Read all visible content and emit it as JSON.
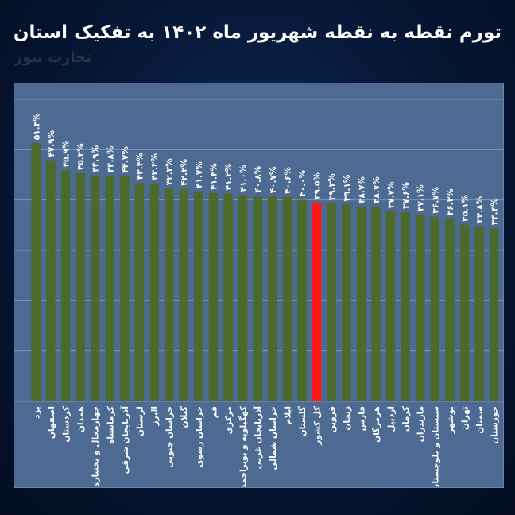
{
  "title": "تورم نقطه به نقطه شهریور ماه ۱۴۰۲ به تفکیک استان",
  "watermark": "تجارت نیوز",
  "colors": {
    "background": "#071634",
    "panel": "#4d6a92",
    "bar": "#4b6a2b",
    "highlight": "#ff1a1a",
    "grid": "#7c95b8",
    "label": "#ffffff"
  },
  "chart_data": {
    "type": "bar",
    "categories": [
      "یزد",
      "اصفهان",
      "کردستان",
      "همدان",
      "چهارمحال و بختیاری",
      "کرمانشاه",
      "آذربایجان شرقی",
      "لرستان",
      "البرز",
      "خراسان جنوبی",
      "گیلان",
      "خراسان رضوی",
      "قم",
      "مرکزی",
      "کهگیلویه و بویراحمد",
      "آذربایجان غربی",
      "خراسان شمالی",
      "ایلام",
      "گلستان",
      "کل کشور",
      "قزوین",
      "زنجان",
      "فارس",
      "هرمزگان",
      "اردبیل",
      "کرمان",
      "مازندران",
      "سیستان و بلوچستان",
      "بوشهر",
      "تهران",
      "سمنان",
      "خوزستان"
    ],
    "values": [
      51.3,
      47.9,
      45.9,
      45.3,
      44.9,
      44.8,
      44.7,
      43.4,
      43.3,
      42.3,
      42.2,
      41.7,
      41.4,
      41.3,
      41.0,
      40.8,
      40.7,
      40.6,
      40.0,
      39.5,
      39.3,
      39.1,
      38.7,
      38.7,
      37.7,
      37.6,
      37.1,
      36.7,
      36.3,
      35.1,
      34.8,
      34.4
    ],
    "data_labels": [
      "۵۱.۳%",
      "۴۷.۹%",
      "۴۵.۹%",
      "۴۵.۳%",
      "۴۴.۹%",
      "۴۴.۸%",
      "۴۴.۷%",
      "۴۳.۴%",
      "۴۳.۳%",
      "۴۲.۳%",
      "۴۲.۲%",
      "۴۱.۷%",
      "۴۱.۴%",
      "۴۱.۳%",
      "۴۱.۰%",
      "۴۰.۸%",
      "۴۰.۷%",
      "۴۰.۶%",
      "۴۰.۰%",
      "۳۹.۵%",
      "۳۹.۳%",
      "۳۹.۱%",
      "۳۸.۷%",
      "۳۸.۷%",
      "۳۷.۷%",
      "۳۷.۶%",
      "۳۷.۱%",
      "۳۶.۷%",
      "۳۶.۳%",
      "۳۵.۱%",
      "۳۴.۸%",
      "۳۴.۴%"
    ],
    "highlight_category": "کل کشور",
    "ylim": [
      0,
      60
    ],
    "grid": true,
    "xlabel": "",
    "ylabel": ""
  }
}
